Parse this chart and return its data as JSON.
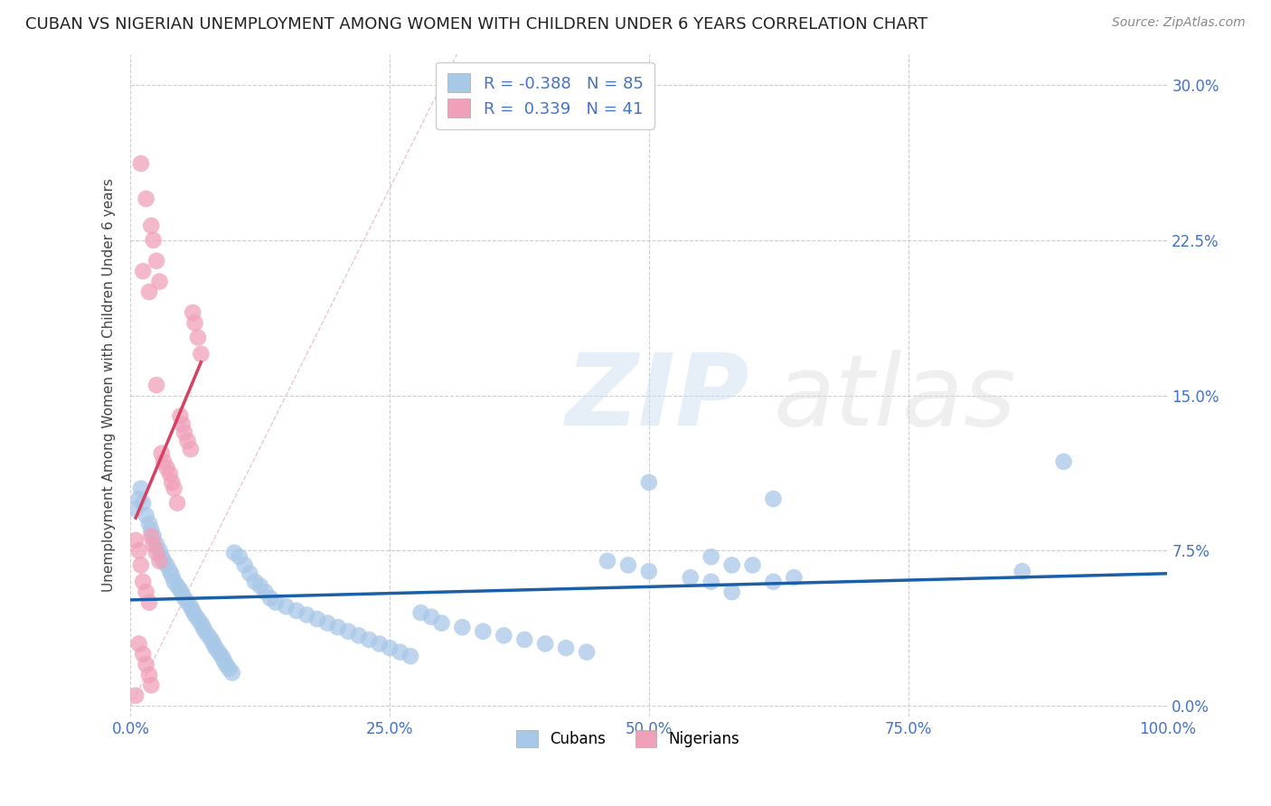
{
  "title": "CUBAN VS NIGERIAN UNEMPLOYMENT AMONG WOMEN WITH CHILDREN UNDER 6 YEARS CORRELATION CHART",
  "source": "Source: ZipAtlas.com",
  "ylabel": "Unemployment Among Women with Children Under 6 years",
  "xlim": [
    0,
    1.0
  ],
  "ylim": [
    -0.005,
    0.315
  ],
  "ytick_positions": [
    0.0,
    0.075,
    0.15,
    0.225,
    0.3
  ],
  "ytick_labels": [
    "0.0%",
    "7.5%",
    "15.0%",
    "22.5%",
    "30.0%"
  ],
  "xtick_positions": [
    0.0,
    0.25,
    0.5,
    0.75,
    1.0
  ],
  "xtick_labels": [
    "0.0%",
    "25.0%",
    "50.0%",
    "75.0%",
    "100.0%"
  ],
  "cuban_R": -0.388,
  "cuban_N": 85,
  "nigerian_R": 0.339,
  "nigerian_N": 41,
  "cuban_color": "#a8c8e8",
  "nigerian_color": "#f0a0b8",
  "cuban_line_color": "#1a5fa8",
  "nigerian_line_color": "#d84060",
  "tick_label_color": "#4472c4",
  "background_color": "#ffffff",
  "grid_color": "#c8c8c8",
  "cuban_scatter": [
    [
      0.005,
      0.095
    ],
    [
      0.008,
      0.1
    ],
    [
      0.01,
      0.105
    ],
    [
      0.012,
      0.098
    ],
    [
      0.015,
      0.092
    ],
    [
      0.018,
      0.088
    ],
    [
      0.02,
      0.085
    ],
    [
      0.022,
      0.082
    ],
    [
      0.025,
      0.078
    ],
    [
      0.028,
      0.075
    ],
    [
      0.03,
      0.072
    ],
    [
      0.032,
      0.07
    ],
    [
      0.035,
      0.068
    ],
    [
      0.038,
      0.065
    ],
    [
      0.04,
      0.063
    ],
    [
      0.042,
      0.06
    ],
    [
      0.045,
      0.058
    ],
    [
      0.048,
      0.056
    ],
    [
      0.05,
      0.054
    ],
    [
      0.052,
      0.052
    ],
    [
      0.055,
      0.05
    ],
    [
      0.058,
      0.048
    ],
    [
      0.06,
      0.046
    ],
    [
      0.062,
      0.044
    ],
    [
      0.065,
      0.042
    ],
    [
      0.068,
      0.04
    ],
    [
      0.07,
      0.038
    ],
    [
      0.072,
      0.036
    ],
    [
      0.075,
      0.034
    ],
    [
      0.078,
      0.032
    ],
    [
      0.08,
      0.03
    ],
    [
      0.082,
      0.028
    ],
    [
      0.085,
      0.026
    ],
    [
      0.088,
      0.024
    ],
    [
      0.09,
      0.022
    ],
    [
      0.092,
      0.02
    ],
    [
      0.095,
      0.018
    ],
    [
      0.098,
      0.016
    ],
    [
      0.1,
      0.074
    ],
    [
      0.105,
      0.072
    ],
    [
      0.11,
      0.068
    ],
    [
      0.115,
      0.064
    ],
    [
      0.12,
      0.06
    ],
    [
      0.125,
      0.058
    ],
    [
      0.13,
      0.055
    ],
    [
      0.135,
      0.052
    ],
    [
      0.14,
      0.05
    ],
    [
      0.15,
      0.048
    ],
    [
      0.16,
      0.046
    ],
    [
      0.17,
      0.044
    ],
    [
      0.18,
      0.042
    ],
    [
      0.19,
      0.04
    ],
    [
      0.2,
      0.038
    ],
    [
      0.21,
      0.036
    ],
    [
      0.22,
      0.034
    ],
    [
      0.23,
      0.032
    ],
    [
      0.24,
      0.03
    ],
    [
      0.25,
      0.028
    ],
    [
      0.26,
      0.026
    ],
    [
      0.27,
      0.024
    ],
    [
      0.28,
      0.045
    ],
    [
      0.29,
      0.043
    ],
    [
      0.3,
      0.04
    ],
    [
      0.32,
      0.038
    ],
    [
      0.34,
      0.036
    ],
    [
      0.36,
      0.034
    ],
    [
      0.38,
      0.032
    ],
    [
      0.4,
      0.03
    ],
    [
      0.42,
      0.028
    ],
    [
      0.44,
      0.026
    ],
    [
      0.46,
      0.07
    ],
    [
      0.48,
      0.068
    ],
    [
      0.5,
      0.065
    ],
    [
      0.54,
      0.062
    ],
    [
      0.56,
      0.06
    ],
    [
      0.58,
      0.055
    ],
    [
      0.6,
      0.068
    ],
    [
      0.62,
      0.1
    ],
    [
      0.64,
      0.062
    ],
    [
      0.5,
      0.108
    ],
    [
      0.56,
      0.072
    ],
    [
      0.58,
      0.068
    ],
    [
      0.62,
      0.06
    ],
    [
      0.9,
      0.118
    ],
    [
      0.86,
      0.065
    ]
  ],
  "nigerian_scatter": [
    [
      0.005,
      0.08
    ],
    [
      0.008,
      0.075
    ],
    [
      0.01,
      0.068
    ],
    [
      0.012,
      0.06
    ],
    [
      0.015,
      0.055
    ],
    [
      0.018,
      0.05
    ],
    [
      0.02,
      0.082
    ],
    [
      0.022,
      0.078
    ],
    [
      0.025,
      0.074
    ],
    [
      0.028,
      0.07
    ],
    [
      0.03,
      0.122
    ],
    [
      0.032,
      0.118
    ],
    [
      0.035,
      0.115
    ],
    [
      0.038,
      0.112
    ],
    [
      0.04,
      0.108
    ],
    [
      0.042,
      0.105
    ],
    [
      0.045,
      0.098
    ],
    [
      0.048,
      0.14
    ],
    [
      0.05,
      0.136
    ],
    [
      0.052,
      0.132
    ],
    [
      0.055,
      0.128
    ],
    [
      0.058,
      0.124
    ],
    [
      0.06,
      0.19
    ],
    [
      0.062,
      0.185
    ],
    [
      0.065,
      0.178
    ],
    [
      0.068,
      0.17
    ],
    [
      0.012,
      0.21
    ],
    [
      0.018,
      0.2
    ],
    [
      0.022,
      0.225
    ],
    [
      0.025,
      0.215
    ],
    [
      0.028,
      0.205
    ],
    [
      0.01,
      0.262
    ],
    [
      0.015,
      0.245
    ],
    [
      0.02,
      0.232
    ],
    [
      0.025,
      0.155
    ],
    [
      0.008,
      0.03
    ],
    [
      0.012,
      0.025
    ],
    [
      0.015,
      0.02
    ],
    [
      0.018,
      0.015
    ],
    [
      0.02,
      0.01
    ],
    [
      0.005,
      0.005
    ]
  ]
}
